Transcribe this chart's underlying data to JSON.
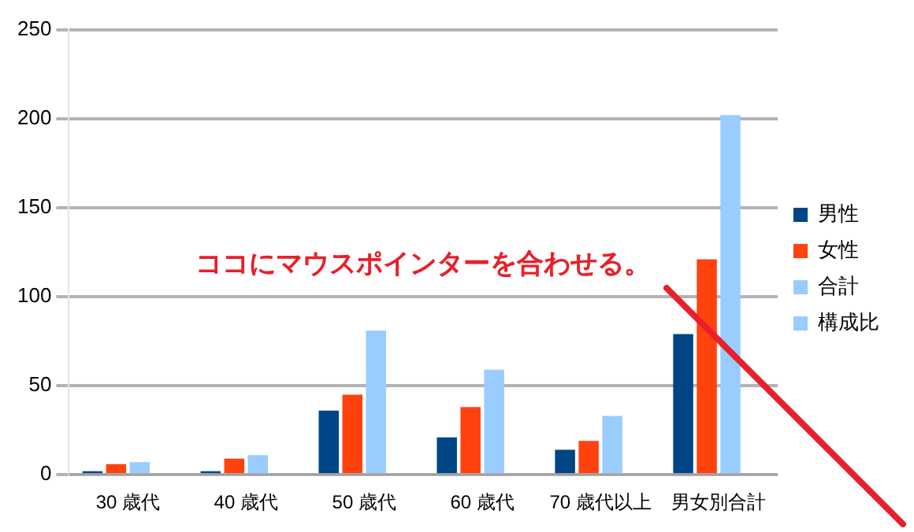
{
  "chart_data": {
    "type": "bar",
    "categories": [
      "30 歳代",
      "40 歳代",
      "50 歳代",
      "60 歳代",
      "70 歳代以上",
      "男女別合計"
    ],
    "series": [
      {
        "name": "男性",
        "color": "#004586",
        "values": [
          2,
          2,
          36,
          21,
          14,
          79
        ]
      },
      {
        "name": "女性",
        "color": "#ff420e",
        "values": [
          6,
          9,
          45,
          38,
          19,
          121
        ]
      },
      {
        "name": "合計",
        "color": "#99ccff",
        "values": [
          7,
          11,
          81,
          59,
          33,
          202
        ]
      },
      {
        "name": "構成比",
        "color": "#99ccff",
        "values": [
          null,
          null,
          null,
          null,
          null,
          null
        ]
      }
    ],
    "ylim": [
      0,
      250
    ],
    "yticks": [
      0,
      50,
      100,
      150,
      200,
      250
    ],
    "grid": "y",
    "legend": "right",
    "annotations": [
      "ココにマウスポインターを合わせる。"
    ]
  }
}
